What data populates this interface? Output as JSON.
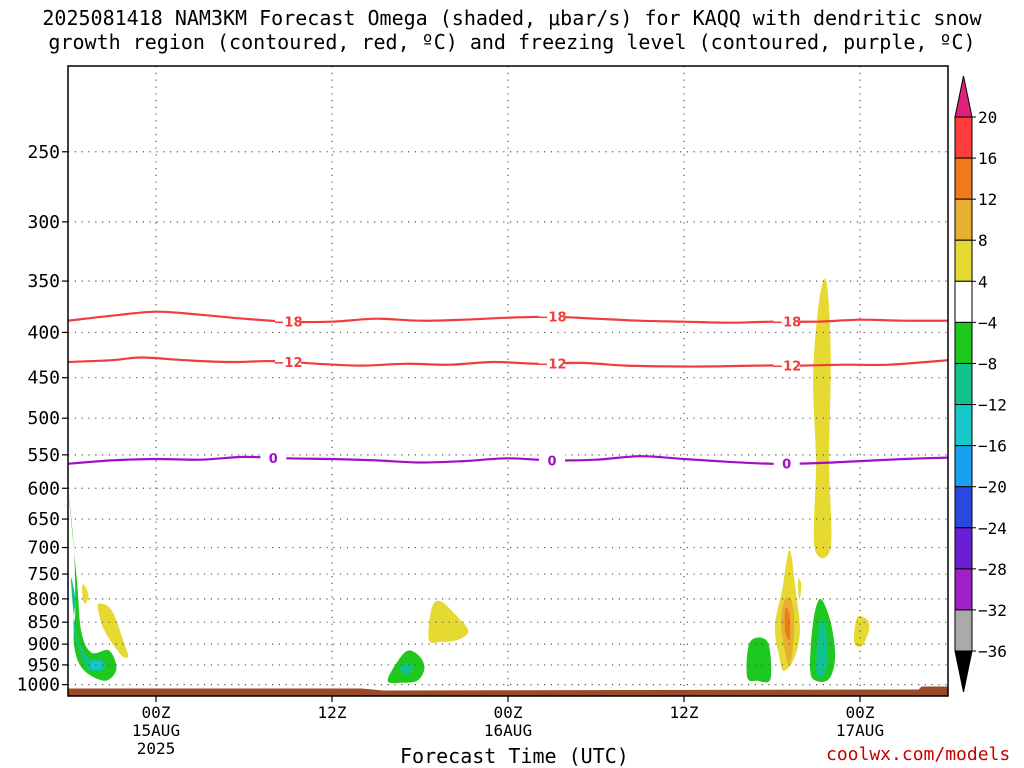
{
  "title": {
    "line1": "2025081418 NAM3KM Forecast Omega (shaded, μbar/s) for KAQQ with dendritic snow",
    "line2": "growth region (contoured, red, ºC) and freezing level (contoured, purple, ºC)"
  },
  "xaxis_title": "Forecast Time (UTC)",
  "credit": "coolwx.com/models",
  "chart_data": {
    "type": "heatmap",
    "title": "2025081418 NAM3KM Forecast Omega (shaded, μbar/s) for KAQQ with dendritic snow growth region (contoured, red, ºC) and freezing level (contoured, purple, ºC)",
    "xlabel": "Forecast Time (UTC)",
    "ylabel": "",
    "x_unit": "hours since 2025-08-14 18Z",
    "xlim": [
      0,
      60
    ],
    "ylim_hpa": [
      200,
      1030
    ],
    "y_scale": "log",
    "grid": true,
    "y_ticks": [
      250,
      300,
      350,
      400,
      450,
      500,
      550,
      600,
      650,
      700,
      750,
      800,
      850,
      900,
      950,
      1000
    ],
    "x_ticks": [
      {
        "x": 6,
        "label": "00Z",
        "sub1": "15AUG",
        "sub2": "2025"
      },
      {
        "x": 18,
        "label": "12Z",
        "sub1": "",
        "sub2": ""
      },
      {
        "x": 30,
        "label": "00Z",
        "sub1": "16AUG",
        "sub2": ""
      },
      {
        "x": 42,
        "label": "12Z",
        "sub1": "",
        "sub2": ""
      },
      {
        "x": 54,
        "label": "00Z",
        "sub1": "17AUG",
        "sub2": ""
      }
    ],
    "colorbar": {
      "labels": [
        "20",
        "16",
        "12",
        "8",
        "4",
        "−4",
        "−8",
        "−12",
        "−16",
        "−20",
        "−24",
        "−28",
        "−32",
        "−36"
      ],
      "colors": [
        "#ff3b3b",
        "#ee7a1e",
        "#e8b030",
        "#e6da32",
        "#ffffff",
        "#1ec81e",
        "#12c28c",
        "#16c8c8",
        "#1aa0f0",
        "#2848e0",
        "#6a1fd4",
        "#a020c8",
        "#aaaaaa"
      ],
      "over_color": "#e0207a",
      "under_color": "#000000"
    },
    "contours": [
      {
        "name": "-18",
        "color": "#f03c3c",
        "label": "−18",
        "points": [
          [
            0,
            388
          ],
          [
            3,
            383
          ],
          [
            6,
            379
          ],
          [
            9,
            382
          ],
          [
            12,
            386
          ],
          [
            15,
            389
          ],
          [
            18,
            389
          ],
          [
            21,
            386
          ],
          [
            24,
            388
          ],
          [
            27,
            387
          ],
          [
            30,
            385
          ],
          [
            33,
            384
          ],
          [
            36,
            386
          ],
          [
            39,
            388
          ],
          [
            42,
            389
          ],
          [
            45,
            390
          ],
          [
            48,
            389
          ],
          [
            51,
            389
          ],
          [
            54,
            387
          ],
          [
            57,
            388
          ],
          [
            60,
            388
          ]
        ],
        "label_x": [
          15,
          33,
          49
        ]
      },
      {
        "name": "-12",
        "color": "#f03c3c",
        "label": "−12",
        "points": [
          [
            0,
            432
          ],
          [
            3,
            430
          ],
          [
            5,
            427
          ],
          [
            8,
            430
          ],
          [
            11,
            432
          ],
          [
            14,
            431
          ],
          [
            17,
            434
          ],
          [
            20,
            436
          ],
          [
            23,
            434
          ],
          [
            26,
            435
          ],
          [
            29,
            432
          ],
          [
            32,
            434
          ],
          [
            35,
            433
          ],
          [
            38,
            436
          ],
          [
            41,
            437
          ],
          [
            44,
            437
          ],
          [
            47,
            436
          ],
          [
            50,
            436
          ],
          [
            53,
            435
          ],
          [
            56,
            435
          ],
          [
            60,
            430
          ]
        ],
        "label_x": [
          15,
          33,
          49
        ]
      },
      {
        "name": "0",
        "color": "#a010c8",
        "label": "0",
        "points": [
          [
            0,
            563
          ],
          [
            3,
            558
          ],
          [
            6,
            556
          ],
          [
            9,
            557
          ],
          [
            12,
            553
          ],
          [
            15,
            555
          ],
          [
            18,
            556
          ],
          [
            21,
            558
          ],
          [
            24,
            561
          ],
          [
            27,
            559
          ],
          [
            30,
            555
          ],
          [
            33,
            558
          ],
          [
            36,
            557
          ],
          [
            39,
            552
          ],
          [
            42,
            556
          ],
          [
            45,
            560
          ],
          [
            48,
            563
          ],
          [
            51,
            562
          ],
          [
            54,
            559
          ],
          [
            57,
            556
          ],
          [
            60,
            554
          ]
        ],
        "label_x": [
          14,
          33,
          49
        ]
      }
    ],
    "shaded_regions": [
      {
        "value_class": "-4 to -8",
        "color": "#1ec81e",
        "points": [
          [
            0,
            600
          ],
          [
            0.4,
            700
          ],
          [
            0.5,
            820
          ],
          [
            0.4,
            900
          ],
          [
            1.0,
            960
          ],
          [
            2.5,
            990
          ],
          [
            3.3,
            960
          ],
          [
            2.8,
            915
          ],
          [
            1.6,
            920
          ],
          [
            0.9,
            870
          ],
          [
            0.6,
            760
          ]
        ]
      },
      {
        "value_class": "-8 to -12",
        "color": "#12c28c",
        "points": [
          [
            0.2,
            760
          ],
          [
            0.5,
            800
          ],
          [
            0.4,
            870
          ],
          [
            1.2,
            950
          ],
          [
            1.6,
            965
          ],
          [
            2.5,
            960
          ],
          [
            2.3,
            935
          ],
          [
            1.5,
            935
          ],
          [
            0.6,
            880
          ]
        ]
      },
      {
        "value_class": "-12 to -16",
        "color": "#16c8c8",
        "points": [
          [
            1.6,
            940
          ],
          [
            2.3,
            945
          ],
          [
            2.2,
            960
          ],
          [
            1.7,
            960
          ]
        ]
      },
      {
        "value_class": "4 to 8",
        "color": "#e6da32",
        "points": [
          [
            1.0,
            770
          ],
          [
            1.4,
            790
          ],
          [
            1.2,
            810
          ],
          [
            1.0,
            800
          ]
        ]
      },
      {
        "value_class": "4 to 8",
        "color": "#e6da32",
        "points": [
          [
            2.1,
            810
          ],
          [
            3.0,
            825
          ],
          [
            3.9,
            905
          ],
          [
            4.1,
            930
          ],
          [
            3.6,
            925
          ],
          [
            2.5,
            870
          ],
          [
            2.1,
            830
          ]
        ]
      },
      {
        "value_class": "-4 to -8",
        "color": "#1ec81e",
        "points": [
          [
            21.8,
            990
          ],
          [
            22.5,
            940
          ],
          [
            23.2,
            915
          ],
          [
            24.0,
            930
          ],
          [
            24.3,
            960
          ],
          [
            23.8,
            990
          ],
          [
            22.7,
            995
          ]
        ]
      },
      {
        "value_class": "-8 to -12",
        "color": "#12c28c",
        "points": [
          [
            22.6,
            960
          ],
          [
            23.1,
            945
          ],
          [
            23.6,
            960
          ],
          [
            23.1,
            975
          ]
        ]
      },
      {
        "value_class": "4 to 8",
        "color": "#e6da32",
        "points": [
          [
            24.6,
            890
          ],
          [
            24.8,
            820
          ],
          [
            25.4,
            805
          ],
          [
            26.6,
            840
          ],
          [
            27.3,
            870
          ],
          [
            26.6,
            890
          ],
          [
            25.4,
            895
          ]
        ]
      },
      {
        "value_class": "-4 to -8",
        "color": "#1ec81e",
        "points": [
          [
            46.3,
            980
          ],
          [
            46.5,
            895
          ],
          [
            47.7,
            895
          ],
          [
            47.9,
            985
          ],
          [
            47.0,
            990
          ]
        ]
      },
      {
        "value_class": "4 to 8",
        "color": "#e6da32",
        "points": [
          [
            48.2,
            860
          ],
          [
            48.7,
            780
          ],
          [
            49.2,
            705
          ],
          [
            49.6,
            780
          ],
          [
            49.9,
            870
          ],
          [
            49.5,
            935
          ],
          [
            48.8,
            965
          ],
          [
            48.5,
            930
          ]
        ]
      },
      {
        "value_class": "8 to 12",
        "color": "#e8b030",
        "points": [
          [
            48.6,
            850
          ],
          [
            48.9,
            800
          ],
          [
            49.4,
            810
          ],
          [
            49.5,
            880
          ],
          [
            49.2,
            950
          ],
          [
            48.9,
            920
          ]
        ]
      },
      {
        "value_class": "12 to 16",
        "color": "#ee7a1e",
        "points": [
          [
            48.9,
            820
          ],
          [
            49.2,
            835
          ],
          [
            49.2,
            890
          ],
          [
            48.9,
            870
          ]
        ]
      },
      {
        "value_class": "4 to 8",
        "color": "#e6da32",
        "points": [
          [
            49.8,
            760
          ],
          [
            50.0,
            770
          ],
          [
            49.9,
            800
          ],
          [
            49.8,
            790
          ]
        ]
      },
      {
        "value_class": "4 to 8",
        "color": "#e6da32",
        "points": [
          [
            50.9,
            700
          ],
          [
            51.0,
            560
          ],
          [
            50.8,
            450
          ],
          [
            51.2,
            370
          ],
          [
            51.7,
            350
          ],
          [
            52.0,
            420
          ],
          [
            51.9,
            560
          ],
          [
            52.0,
            700
          ]
        ]
      },
      {
        "value_class": "-4 to -8",
        "color": "#1ec81e",
        "points": [
          [
            50.6,
            960
          ],
          [
            50.8,
            850
          ],
          [
            51.3,
            800
          ],
          [
            52.0,
            850
          ],
          [
            52.3,
            930
          ],
          [
            51.9,
            985
          ],
          [
            51.0,
            990
          ]
        ]
      },
      {
        "value_class": "-8 to -12",
        "color": "#12c28c",
        "points": [
          [
            51.0,
            950
          ],
          [
            51.2,
            860
          ],
          [
            51.6,
            850
          ],
          [
            51.8,
            930
          ],
          [
            51.5,
            980
          ],
          [
            51.1,
            975
          ]
        ]
      },
      {
        "value_class": "4 to 8",
        "color": "#e6da32",
        "points": [
          [
            53.6,
            895
          ],
          [
            53.8,
            840
          ],
          [
            54.5,
            845
          ],
          [
            54.6,
            870
          ],
          [
            54.1,
            905
          ]
        ]
      }
    ],
    "terrain": {
      "color": "#9c4a26",
      "top_hpa": 1010
    }
  }
}
